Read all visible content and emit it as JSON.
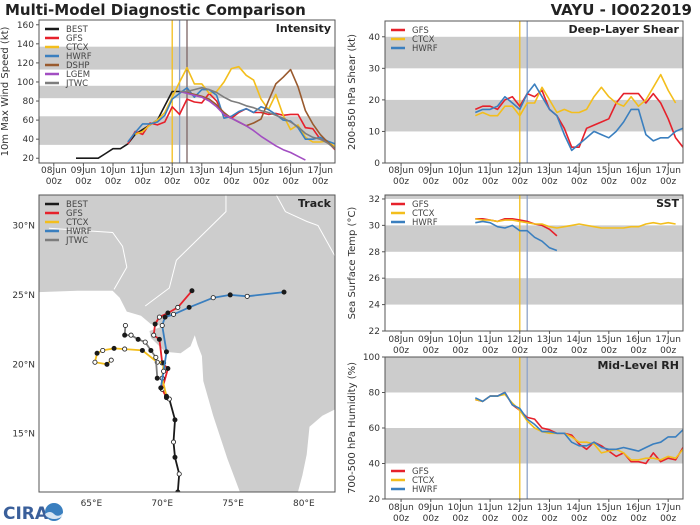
{
  "header": {
    "title": "Multi-Model Diagnostic Comparison",
    "storm": "VAYU - IO022019"
  },
  "logo": {
    "text": "CIRA"
  },
  "colors": {
    "BEST": "#1a1a1a",
    "GFS": "#e6212b",
    "CTCX": "#f3be1c",
    "HWRF": "#3a7fbf",
    "DSHP": "#995a2e",
    "LGEM": "#a24ec2",
    "JTWC": "#7d7d7d",
    "band": "#cccccc",
    "land": "#cdcdcd"
  },
  "chart_data": [
    {
      "type": "line",
      "title": "Intensity",
      "ylabel": "10m Max Wind Speed (kt)",
      "ylim": [
        15,
        165
      ],
      "xlim": [
        "07Jun 12z",
        "17Jun 12z"
      ],
      "x_ticks": [
        "08Jun",
        "09Jun",
        "10Jun",
        "11Jun",
        "12Jun",
        "13Jun",
        "14Jun",
        "15Jun",
        "16Jun",
        "17Jun"
      ],
      "x_tick_sub": "00z",
      "y_ticks": [
        20,
        40,
        60,
        80,
        100,
        120,
        140,
        160
      ],
      "bands": [
        [
          34,
          64
        ],
        [
          83,
          96
        ],
        [
          113,
          137
        ]
      ],
      "vlines": [
        {
          "x": "12Jun 00z",
          "color": "#f3be1c"
        },
        {
          "x": "12Jun 06z",
          "color": "#8ea3c9"
        },
        {
          "x": "12Jun 12z",
          "color": "#7d6565"
        }
      ],
      "legend": "top-left",
      "series": [
        {
          "name": "BEST",
          "start": "08Jun 18z",
          "step_hours": 6,
          "values": [
            20,
            20,
            20,
            20,
            25,
            30,
            30,
            35,
            45,
            50,
            55,
            60,
            75,
            90,
            90
          ]
        },
        {
          "name": "GFS",
          "start": "10Jun 12z",
          "step_hours": 6,
          "values": [
            35,
            48,
            45,
            57,
            55,
            58,
            74,
            66,
            82,
            79,
            78,
            88,
            80,
            65,
            62,
            68,
            72,
            68,
            68,
            66,
            67,
            65,
            66,
            66,
            52,
            51,
            40,
            37,
            29
          ]
        },
        {
          "name": "CTCX",
          "start": "10Jun 18z",
          "step_hours": 6,
          "values": [
            45,
            48,
            55,
            60,
            68,
            84,
            100,
            115,
            98,
            98,
            88,
            90,
            100,
            114,
            116,
            107,
            102,
            82,
            71,
            87,
            65,
            50,
            55,
            42,
            37,
            37,
            38,
            32
          ]
        },
        {
          "name": "HWRF",
          "start": "10Jun 12z",
          "step_hours": 6,
          "values": [
            37,
            47,
            56,
            56,
            58,
            65,
            82,
            88,
            94,
            84,
            92,
            92,
            86,
            62,
            64,
            69,
            72,
            68,
            74,
            71,
            66,
            60,
            59,
            52,
            40,
            40,
            42,
            38,
            35
          ]
        },
        {
          "name": "DSHP",
          "start": "12Jun 06z",
          "step_hours": 6,
          "values": [
            90,
            89,
            87,
            85,
            82,
            76,
            68,
            62,
            58,
            54,
            57,
            61,
            80,
            98,
            105,
            113,
            95,
            70,
            56,
            45,
            37,
            30
          ]
        },
        {
          "name": "LGEM",
          "start": "12Jun 06z",
          "step_hours": 6,
          "values": [
            90,
            88,
            86,
            84,
            80,
            74,
            66,
            62,
            58,
            54,
            49,
            43,
            38,
            33,
            29,
            26,
            22,
            18
          ]
        },
        {
          "name": "JTWC",
          "start": "12Jun 06z",
          "step_hours": 6,
          "values": [
            90,
            90,
            92,
            94,
            92,
            89,
            84,
            80,
            78,
            75,
            73,
            70,
            68,
            65,
            62,
            58,
            53,
            46,
            42,
            40,
            36,
            30
          ]
        }
      ]
    },
    {
      "type": "line",
      "title": "Deep-Layer Shear",
      "ylabel": "200-850 hPa Shear (kt)",
      "ylim": [
        0,
        45
      ],
      "xlim": [
        "07Jun 11z",
        "17Jun 12z"
      ],
      "x_ticks": [
        "08Jun",
        "09Jun",
        "10Jun",
        "11Jun",
        "12Jun",
        "13Jun",
        "14Jun",
        "15Jun",
        "16Jun",
        "17Jun"
      ],
      "x_tick_sub": "00z",
      "y_ticks": [
        0,
        10,
        20,
        30,
        40
      ],
      "bands": [
        [
          10,
          20
        ],
        [
          30,
          40
        ]
      ],
      "vlines": [
        {
          "x": "12Jun 00z",
          "color": "#f3be1c"
        },
        {
          "x": "12Jun 06z",
          "color": "#8ea3c9"
        }
      ],
      "legend": "top-left",
      "series": [
        {
          "name": "GFS",
          "start": "10Jun 12z",
          "step_hours": 6,
          "values": [
            17,
            18,
            18,
            17,
            20,
            21,
            18,
            22,
            21,
            23,
            17,
            15,
            11,
            5,
            5,
            11,
            12,
            13,
            14,
            19,
            22,
            22,
            22,
            19,
            22,
            19,
            14,
            8,
            5
          ]
        },
        {
          "name": "CTCX",
          "start": "10Jun 12z",
          "step_hours": 6,
          "values": [
            15,
            16,
            15,
            15,
            18,
            18,
            15,
            19,
            19,
            24,
            20,
            16,
            17,
            16,
            16,
            17,
            21,
            24,
            21,
            19,
            18,
            21,
            18,
            20,
            24,
            28,
            23,
            19
          ]
        },
        {
          "name": "HWRF",
          "start": "10Jun 12z",
          "step_hours": 6,
          "values": [
            16,
            17,
            17,
            18,
            21,
            19,
            17,
            22,
            25,
            21,
            17,
            15,
            9,
            4,
            6,
            8,
            10,
            9,
            8,
            10,
            13,
            17,
            17,
            9,
            7,
            8,
            8,
            10,
            11
          ]
        }
      ]
    },
    {
      "type": "line",
      "title": "SST",
      "ylabel": "Sea Surface Temp (°C)",
      "ylim": [
        22,
        32.3
      ],
      "xlim": [
        "07Jun 11z",
        "17Jun 12z"
      ],
      "x_ticks": [
        "08Jun",
        "09Jun",
        "10Jun",
        "11Jun",
        "12Jun",
        "13Jun",
        "14Jun",
        "15Jun",
        "16Jun",
        "17Jun"
      ],
      "x_tick_sub": "00z",
      "y_ticks": [
        22,
        24,
        26,
        28,
        30,
        32
      ],
      "bands": [
        [
          24,
          26
        ],
        [
          28,
          30
        ],
        [
          32,
          33
        ]
      ],
      "vlines": [
        {
          "x": "12Jun 00z",
          "color": "#f3be1c"
        },
        {
          "x": "12Jun 06z",
          "color": "#8ea3c9"
        }
      ],
      "legend": "top-left",
      "series": [
        {
          "name": "GFS",
          "start": "10Jun 12z",
          "step_hours": 6,
          "values": [
            30.5,
            30.5,
            30.4,
            30.3,
            30.5,
            30.5,
            30.4,
            30.3,
            30.1,
            30.0,
            29.7,
            29.2
          ]
        },
        {
          "name": "CTCX",
          "start": "10Jun 12z",
          "step_hours": 6,
          "values": [
            30.5,
            30.4,
            30.4,
            30.3,
            30.4,
            30.4,
            30.3,
            30.2,
            30.1,
            30.1,
            29.9,
            29.8,
            29.9,
            30.0,
            30.1,
            30.0,
            29.9,
            29.8,
            29.8,
            29.8,
            29.8,
            29.9,
            29.9,
            30.1,
            30.2,
            30.1,
            30.2,
            30.1
          ]
        },
        {
          "name": "HWRF",
          "start": "10Jun 12z",
          "step_hours": 6,
          "values": [
            30.2,
            30.3,
            30.2,
            29.9,
            29.8,
            30.0,
            29.6,
            29.6,
            29.1,
            28.8,
            28.3,
            28.1
          ]
        }
      ]
    },
    {
      "type": "line",
      "title": "Mid-Level RH",
      "ylabel": "700-500 hPa Humidity (%)",
      "ylim": [
        20,
        100
      ],
      "xlim": [
        "07Jun 11z",
        "17Jun 12z"
      ],
      "x_ticks": [
        "08Jun",
        "09Jun",
        "10Jun",
        "11Jun",
        "12Jun",
        "13Jun",
        "14Jun",
        "15Jun",
        "16Jun",
        "17Jun"
      ],
      "x_tick_sub": "00z",
      "y_ticks": [
        20,
        40,
        60,
        80,
        100
      ],
      "bands": [
        [
          40,
          60
        ],
        [
          80,
          100
        ]
      ],
      "vlines": [
        {
          "x": "12Jun 00z",
          "color": "#f3be1c"
        },
        {
          "x": "12Jun 06z",
          "color": "#8ea3c9"
        }
      ],
      "legend": "bottom-left",
      "series": [
        {
          "name": "GFS",
          "start": "10Jun 12z",
          "step_hours": 6,
          "values": [
            76,
            75,
            78,
            78,
            80,
            73,
            70,
            66,
            65,
            60,
            59,
            57,
            57,
            56,
            51,
            48,
            52,
            50,
            47,
            44,
            46,
            41,
            41,
            40,
            46,
            41,
            43,
            42,
            49
          ]
        },
        {
          "name": "CTCX",
          "start": "10Jun 12z",
          "step_hours": 6,
          "values": [
            76,
            75,
            78,
            78,
            79,
            74,
            70,
            64,
            60,
            58,
            57,
            57,
            57,
            55,
            52,
            52,
            51,
            46,
            47,
            48,
            46,
            42,
            42,
            43,
            43,
            42,
            44,
            43,
            48
          ]
        },
        {
          "name": "HWRF",
          "start": "10Jun 12z",
          "step_hours": 6,
          "values": [
            77,
            75,
            78,
            78,
            80,
            73,
            71,
            65,
            62,
            58,
            58,
            57,
            57,
            52,
            50,
            50,
            52,
            49,
            48,
            48,
            49,
            48,
            47,
            49,
            51,
            52,
            55,
            55,
            59
          ]
        }
      ]
    },
    {
      "type": "map",
      "title": "Track",
      "lon_range": [
        61.3,
        82.2
      ],
      "lat_range": [
        10.8,
        32.2
      ],
      "lon_ticks": [
        "65°E",
        "70°E",
        "75°E",
        "80°E"
      ],
      "lon_tick_values": [
        65,
        70,
        75,
        80
      ],
      "lat_ticks": [
        "15°N",
        "20°N",
        "25°N",
        "30°N"
      ],
      "lat_tick_values": [
        15,
        20,
        25,
        30
      ],
      "legend": "top-left",
      "series": [
        {
          "name": "BEST",
          "points": [
            [
              71.1,
              10.8
            ],
            [
              71.2,
              12.1
            ],
            [
              70.9,
              13.3
            ],
            [
              70.8,
              14.4
            ],
            [
              70.9,
              16.0
            ],
            [
              70.5,
              17.5
            ]
          ]
        },
        {
          "name": "GFS",
          "points": [
            [
              70.3,
              17.6
            ],
            [
              70.0,
              18.2
            ],
            [
              70.4,
              19.7
            ],
            [
              70.0,
              20.1
            ],
            [
              69.8,
              21.8
            ],
            [
              69.4,
              22.1
            ],
            [
              69.5,
              22.9
            ],
            [
              69.8,
              23.4
            ],
            [
              70.4,
              23.7
            ],
            [
              71.1,
              24.1
            ],
            [
              72.1,
              25.3
            ]
          ]
        },
        {
          "name": "CTCX",
          "points": [
            [
              70.3,
              17.7
            ],
            [
              70.0,
              19.0
            ],
            [
              70.1,
              20.1
            ],
            [
              69.65,
              20.15
            ],
            [
              68.6,
              21.0
            ],
            [
              67.35,
              21.1
            ],
            [
              66.6,
              21.15
            ],
            [
              65.8,
              21.0
            ],
            [
              65.4,
              20.8
            ],
            [
              65.25,
              20.15
            ],
            [
              66.1,
              20.0
            ],
            [
              66.4,
              20.3
            ]
          ]
        },
        {
          "name": "HWRF",
          "points": [
            [
              69.9,
              18.3
            ],
            [
              70.1,
              19.5
            ],
            [
              70.3,
              20.9
            ],
            [
              70.0,
              22.8
            ],
            [
              70.2,
              23.4
            ],
            [
              70.8,
              23.6
            ],
            [
              71.9,
              24.1
            ],
            [
              73.6,
              24.8
            ],
            [
              74.8,
              25.0
            ],
            [
              76.0,
              24.9
            ],
            [
              78.6,
              25.2
            ]
          ]
        },
        {
          "name": "JTWC",
          "points": [
            [
              69.65,
              19.0
            ],
            [
              69.55,
              20.5
            ],
            [
              69.2,
              21.0
            ],
            [
              68.8,
              21.6
            ],
            [
              68.3,
              21.8
            ],
            [
              67.8,
              22.1
            ],
            [
              67.35,
              22.1
            ],
            [
              67.4,
              22.8
            ]
          ]
        }
      ]
    }
  ]
}
